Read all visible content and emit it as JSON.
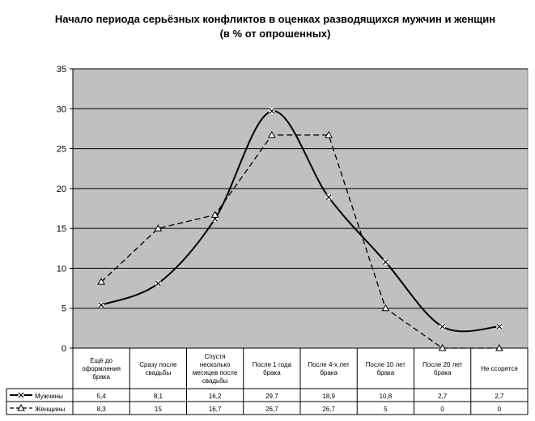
{
  "chart_data": {
    "type": "line",
    "title": "Начало периода серьёзных конфликтов в оценках разводящихся мужчин и женщин (в % от опрошенных)",
    "categories": [
      [
        "Ещё до",
        "оформления",
        "брака"
      ],
      [
        "Сразу после",
        "свадьбы"
      ],
      [
        "Спустя",
        "несколько",
        "месяцев после",
        "свадьбы"
      ],
      [
        "После 1 года",
        "брака"
      ],
      [
        "После 4-х лет",
        "брака"
      ],
      [
        "После 10 лет",
        "брака"
      ],
      [
        "После 20 лет",
        "брака"
      ],
      [
        "Не ссорятся"
      ]
    ],
    "ylim": [
      0,
      35
    ],
    "yticks": [
      "0",
      "5",
      "10",
      "15",
      "20",
      "25",
      "30",
      "35"
    ],
    "grid": true,
    "legend": "data-table",
    "series": [
      {
        "name": "Мужчины",
        "marker": "x",
        "style": "solid",
        "values": [
          5.4,
          8.1,
          16.2,
          29.7,
          18.9,
          10.8,
          2.7,
          2.7
        ],
        "labels": [
          "5,4",
          "8,1",
          "16,2",
          "29,7",
          "18,9",
          "10,8",
          "2,7",
          "2,7"
        ]
      },
      {
        "name": "Женщины",
        "marker": "triangle",
        "style": "dashed",
        "values": [
          8.3,
          15,
          16.7,
          26.7,
          26.7,
          5,
          0,
          0
        ],
        "labels": [
          "8,3",
          "15",
          "16,7",
          "26,7",
          "26,7",
          "5",
          "0",
          "0"
        ]
      }
    ],
    "colors": {
      "plot_bg": "#c0c0c0",
      "line": "#000000"
    }
  }
}
